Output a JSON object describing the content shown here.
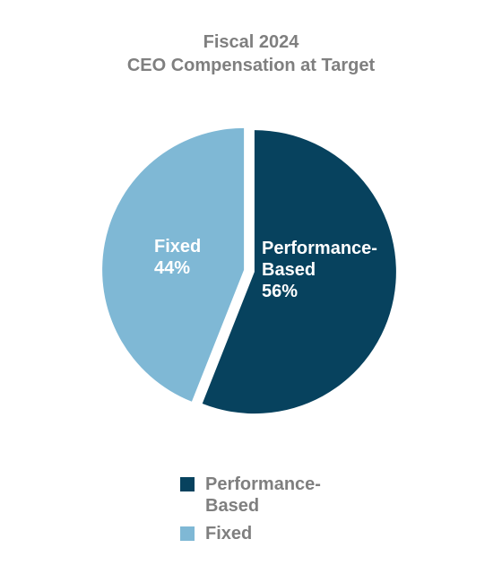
{
  "chart_data": {
    "type": "pie",
    "title": "Fiscal 2024",
    "subtitle": "CEO Compensation at Target",
    "slices": [
      {
        "label": "Performance-Based",
        "value": 56,
        "display": "56%",
        "color": "#07425e",
        "label_lines": [
          "Performance-",
          "Based"
        ]
      },
      {
        "label": "Fixed",
        "value": 44,
        "display": "44%",
        "color": "#7fb8d5",
        "label_lines": [
          "Fixed"
        ]
      }
    ],
    "legend": {
      "position": "bottom",
      "items": [
        {
          "label_line1": "Performance-",
          "label_line2": "Based",
          "color": "#07425e"
        },
        {
          "label_line1": "Fixed",
          "label_line2": "",
          "color": "#7fb8d5"
        }
      ]
    }
  }
}
